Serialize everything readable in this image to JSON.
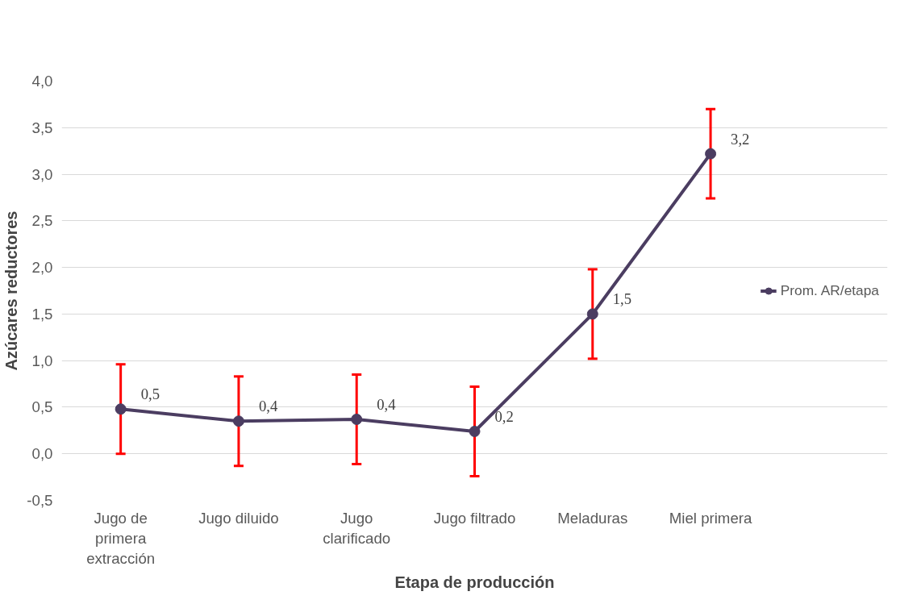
{
  "chart_data": {
    "type": "line",
    "xlabel": "Etapa de producción",
    "ylabel": "Azúcares reductores",
    "categories": [
      "Jugo de primera extracción",
      "Jugo diluido",
      "Jugo clarificado",
      "Jugo filtrado",
      "Meladuras",
      "Miel primera",
      null
    ],
    "series": [
      {
        "name": "Prom. AR/etapa",
        "color": "#4b3d61",
        "values": [
          0.48,
          0.35,
          0.37,
          0.24,
          1.5,
          3.22,
          null
        ],
        "errors": [
          0.48,
          0.48,
          0.48,
          0.48,
          0.48,
          0.48,
          null
        ],
        "value_labels": [
          "0,5",
          "0,4",
          "0,4",
          "0,2",
          "1,5",
          "3,2",
          null
        ]
      }
    ],
    "ylim": [
      -0.5,
      4.0
    ],
    "yticks": [
      {
        "value": -0.5,
        "label": "-0,5"
      },
      {
        "value": 0,
        "label": "0,0"
      },
      {
        "value": 0.5,
        "label": "0,5"
      },
      {
        "value": 1,
        "label": "1,0"
      },
      {
        "value": 1.5,
        "label": "1,5"
      },
      {
        "value": 2,
        "label": "2,0"
      },
      {
        "value": 2.5,
        "label": "2,5"
      },
      {
        "value": 3,
        "label": "3,0"
      },
      {
        "value": 3.5,
        "label": "3,5"
      },
      {
        "value": 4,
        "label": "4,0"
      }
    ],
    "grid": "y",
    "legend": "right",
    "marker": "circle",
    "line_style": "solid"
  }
}
